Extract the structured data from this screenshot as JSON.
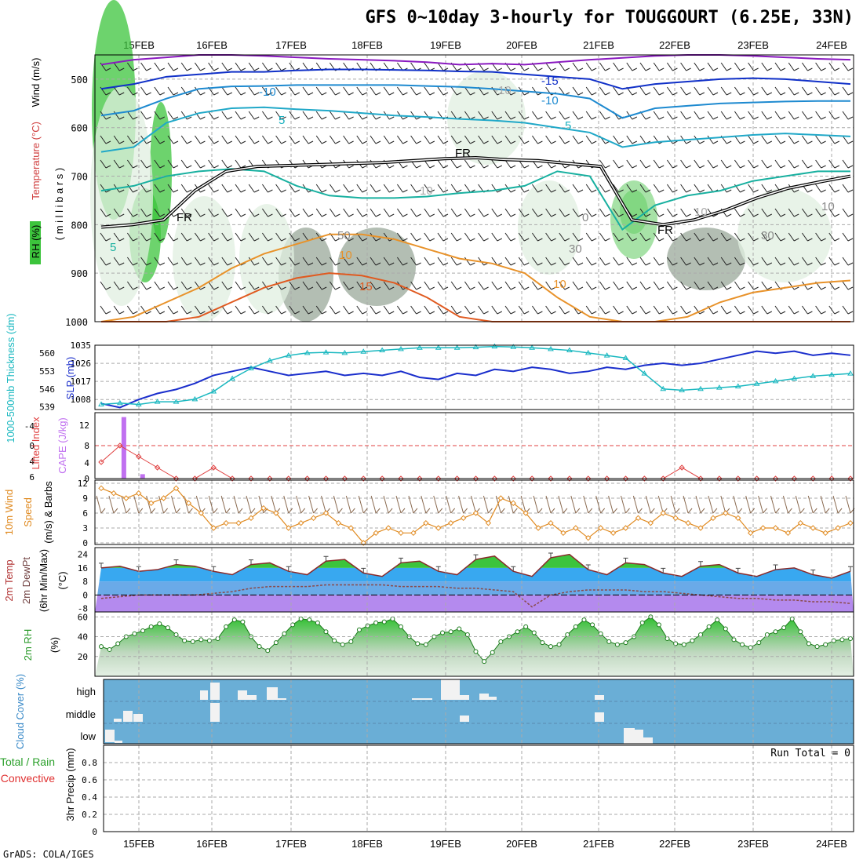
{
  "title": "GFS 0~10day 3-hourly for TOUGGOURT (6.25E, 33N)",
  "credit": "GrADS: COLA/IGES",
  "colors": {
    "rh_green": "#3cc43c",
    "rh_light": "#e0efe0",
    "rh_grey": "#9aa89a",
    "temp_warm": "#e8922a",
    "temp_hot": "#d83a1e",
    "temp_cold_teal": "#18b0a0",
    "temp_cold_blue": "#1e8ad0",
    "temp_very_cold": "#1030c8",
    "temp_purple": "#8a1ac0",
    "freezing": "#000000",
    "slp": "#1a2ecc",
    "thickness": "#1ab8c0",
    "cape": "#c070f0",
    "lifted_index": "#e04040",
    "wind10": "#e08a20",
    "cloud_bg": "#6aaed6",
    "cloud_fill": "#f2f2f2"
  },
  "chart_data": [
    {
      "type": "heatmap",
      "panel": "upper_air",
      "ylabel_parts": {
        "wind": "Wind (m/s)",
        "temp": "Temperature (°C)",
        "rh": "RH (%)",
        "mb": "( m i l l i b a r s )"
      },
      "y_ticks": [
        "500",
        "600",
        "700",
        "800",
        "900",
        "1000"
      ],
      "x_ticks": [
        "15FEB",
        "16FEB",
        "17FEB",
        "18FEB",
        "19FEB",
        "20FEB",
        "21FEB",
        "22FEB",
        "23FEB",
        "24FEB"
      ],
      "ylim": [
        1000,
        450
      ],
      "contour_labels": [
        "-15",
        "-10",
        "-10",
        "5",
        "5",
        "FR",
        "FR",
        "FR",
        "5",
        "10",
        "15",
        "10",
        "0",
        "10",
        "10",
        "30",
        "30",
        "50",
        "10",
        "-10"
      ],
      "freezing_level_mb": [
        805,
        800,
        790,
        730,
        690,
        680,
        678,
        676,
        674,
        672,
        668,
        664,
        662,
        666,
        668,
        674,
        680,
        790,
        800,
        790,
        770,
        745,
        725,
        712,
        700
      ]
    },
    {
      "type": "line",
      "panel": "slp_thickness",
      "ylabel_left": "1000-500mb Thickness (dm)",
      "ylabel_right": "SLP (mb)",
      "slp_ticks": [
        "1035",
        "1026",
        "1017",
        "1008"
      ],
      "thickness_ticks": [
        "560",
        "553",
        "546",
        "539"
      ],
      "series": [
        {
          "name": "SLP (mb)",
          "values": [
            1006,
            1004,
            1008,
            1011,
            1013,
            1016,
            1020,
            1022,
            1024,
            1022,
            1020,
            1021,
            1022,
            1020,
            1021,
            1020,
            1022,
            1019,
            1018,
            1021,
            1020,
            1023,
            1022,
            1024,
            1023,
            1021,
            1022,
            1024,
            1023,
            1025,
            1026,
            1025,
            1026,
            1028,
            1030,
            1032,
            1031,
            1032,
            1030,
            1031,
            1030
          ]
        },
        {
          "name": "1000-500mb Thickness (dm)",
          "values": [
            540,
            540.5,
            540,
            541,
            541,
            542,
            545,
            550,
            554,
            557,
            559,
            560,
            560.2,
            560,
            560.5,
            561,
            561.5,
            562,
            562,
            562,
            562.2,
            562.5,
            562.3,
            562,
            561.5,
            561,
            560,
            559,
            558,
            552,
            546,
            545.5,
            546,
            546.5,
            547,
            548,
            549,
            550,
            551,
            551.5,
            552
          ]
        }
      ]
    },
    {
      "type": "bar",
      "panel": "cape_li",
      "ylabel_left": "Lifted Index",
      "ylabel_right": "CAPE (J/kg)",
      "li_ticks": [
        "-4",
        "0",
        "4",
        "6"
      ],
      "cape_ticks": [
        "12",
        "8",
        "4",
        "0"
      ],
      "series": [
        {
          "name": "CAPE (J/kg)",
          "values": [
            0,
            14,
            1,
            0,
            0,
            0,
            0,
            0,
            0,
            0,
            0,
            0,
            0,
            0,
            0,
            0,
            0,
            0,
            0,
            0,
            0,
            0,
            0,
            0,
            0,
            0,
            0,
            0,
            0,
            0,
            0,
            0,
            0,
            0,
            0,
            0,
            0,
            0,
            0,
            0,
            0
          ]
        },
        {
          "name": "Lifted Index",
          "values": [
            3,
            0,
            2,
            4,
            6,
            6,
            4,
            6,
            6,
            6,
            6,
            6,
            6,
            6,
            6,
            6,
            6,
            6,
            6,
            6,
            6,
            6,
            6,
            6,
            6,
            6,
            6,
            6,
            6,
            6,
            6,
            4,
            6,
            6,
            6,
            6,
            6,
            6,
            6,
            6,
            6
          ]
        }
      ]
    },
    {
      "type": "line",
      "panel": "wind10",
      "ylabel": "10m Wind Speed (m/s) & Barbs",
      "y_ticks": [
        "12",
        "9",
        "6",
        "3",
        "0"
      ],
      "ylim": [
        0,
        12
      ],
      "series": [
        {
          "name": "10m Wind Speed",
          "values": [
            11,
            10,
            9,
            10,
            8,
            9,
            11,
            8,
            6,
            3,
            4,
            4,
            5,
            7,
            6,
            3,
            4,
            5,
            6,
            4,
            3,
            0,
            2,
            3,
            2,
            2,
            4,
            3,
            4,
            5,
            6,
            4,
            9,
            8,
            6,
            3,
            4,
            2,
            3,
            1,
            3,
            2,
            3,
            5,
            4,
            6,
            5,
            4,
            3,
            5,
            6,
            5,
            2,
            3,
            3,
            2,
            4,
            3,
            2,
            3,
            4
          ]
        }
      ]
    },
    {
      "type": "area",
      "panel": "temp2m",
      "ylabel": "2m Temp 2m DewPt (6hr Min/Max) (°C)",
      "y_ticks": [
        "24",
        "16",
        "8",
        "0",
        "-8"
      ],
      "ylim": [
        -10,
        28
      ],
      "series": [
        {
          "name": "2m Temp",
          "values": [
            16,
            17,
            14,
            15,
            18,
            17,
            14,
            12,
            18,
            19,
            14,
            12,
            20,
            21,
            13,
            11,
            19,
            20,
            14,
            12,
            21,
            23,
            14,
            11,
            22,
            24,
            15,
            12,
            19,
            18,
            13,
            11,
            17,
            18,
            13,
            11,
            15,
            16,
            12,
            10,
            14
          ]
        },
        {
          "name": "2m DewPt",
          "values": [
            -2,
            -1,
            0,
            0,
            0,
            0,
            1,
            2,
            4,
            5,
            5,
            5,
            6,
            6,
            6,
            6,
            5,
            5,
            5,
            4,
            4,
            3,
            2,
            -7,
            0,
            2,
            3,
            3,
            3,
            2,
            2,
            1,
            0,
            -1,
            -2,
            -2,
            -3,
            -3,
            -4,
            -4,
            -5
          ]
        }
      ]
    },
    {
      "type": "area",
      "panel": "rh2m",
      "ylabel": "2m RH (%)",
      "y_ticks": [
        "60",
        "40",
        "20"
      ],
      "ylim": [
        0,
        65
      ],
      "values": [
        30,
        27,
        33,
        40,
        43,
        46,
        50,
        53,
        49,
        42,
        36,
        35,
        37,
        36,
        38,
        50,
        57,
        55,
        40,
        30,
        26,
        34,
        43,
        52,
        58,
        57,
        54,
        45,
        36,
        32,
        35,
        47,
        51,
        54,
        55,
        58,
        50,
        40,
        33,
        32,
        40,
        44,
        45,
        48,
        42,
        25,
        15,
        24,
        35,
        40,
        45,
        50,
        44,
        34,
        30,
        32,
        42,
        50,
        57,
        52,
        43,
        35,
        32,
        34,
        40,
        54,
        60,
        52,
        38,
        33,
        32,
        36,
        42,
        50,
        57,
        48,
        37,
        32,
        29,
        34,
        42,
        45,
        49,
        58,
        45,
        33,
        30,
        32,
        36,
        37,
        38
      ]
    },
    {
      "type": "bar",
      "panel": "cloud",
      "ylabel": "Cloud Cover (%)",
      "y_labels": [
        "high",
        "middle",
        "low"
      ]
    },
    {
      "type": "bar",
      "panel": "precip",
      "ylabel_green": "Total / Rain",
      "ylabel_red": "Convective",
      "ylabel_units": "3hr Precip (mm)",
      "y_ticks": [
        "0.8",
        "0.6",
        "0.4",
        "0.2",
        "0"
      ],
      "ylim": [
        0,
        1
      ],
      "run_total_label": "Run Total = 0",
      "values": []
    }
  ]
}
